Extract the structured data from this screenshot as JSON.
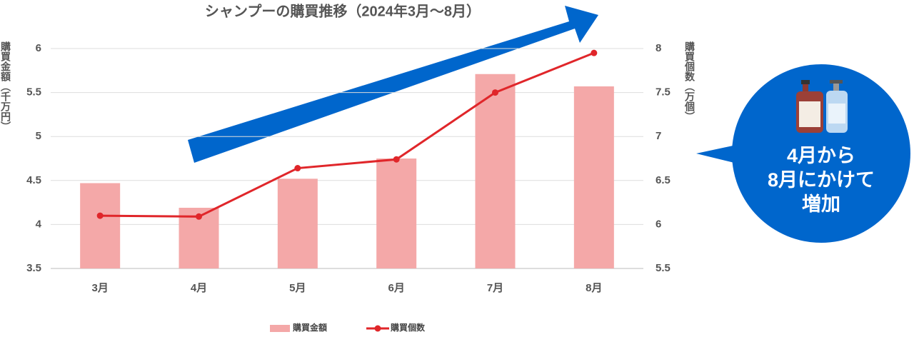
{
  "chart_data": {
    "type": "combo",
    "title": "シャンプーの購買推移（2024年3月〜8月）",
    "y_label": "購買金額（千万円）",
    "y2_label": "購買個数（万個）",
    "categories": [
      "3月",
      "4月",
      "5月",
      "6月",
      "7月",
      "8月"
    ],
    "series": [
      {
        "name": "購買金額",
        "type": "bar",
        "color": "#f4a8a8",
        "values": [
          4.47,
          4.19,
          4.52,
          4.75,
          5.71,
          5.57
        ]
      },
      {
        "name": "購買個数",
        "type": "line",
        "axis": "y2",
        "color": "#e0262a",
        "values": [
          6.1,
          6.09,
          6.64,
          6.74,
          7.5,
          7.95
        ]
      }
    ],
    "ylim": [
      3.5,
      6
    ],
    "yticks": [
      3.5,
      4,
      4.5,
      5,
      5.5,
      6
    ],
    "y2lim": [
      5.5,
      8
    ],
    "y2ticks": [
      5.5,
      6,
      6.5,
      7,
      7.5,
      8
    ],
    "grid": true,
    "callout": [
      "4月から",
      "8月にかけて",
      "増加"
    ]
  }
}
